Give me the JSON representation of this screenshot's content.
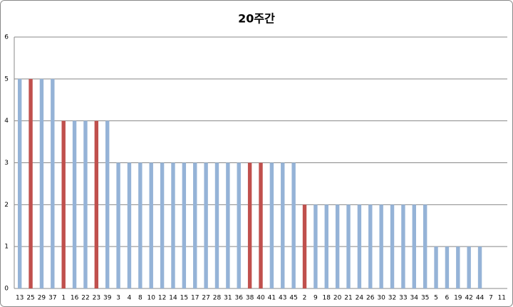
{
  "chart_data": {
    "type": "bar",
    "title": "20주간",
    "categories": [
      "13",
      "25",
      "29",
      "37",
      "1",
      "16",
      "22",
      "23",
      "39",
      "3",
      "4",
      "8",
      "10",
      "12",
      "14",
      "15",
      "17",
      "27",
      "28",
      "31",
      "36",
      "38",
      "40",
      "41",
      "43",
      "45",
      "2",
      "9",
      "18",
      "20",
      "21",
      "24",
      "26",
      "30",
      "32",
      "33",
      "34",
      "35",
      "5",
      "6",
      "19",
      "42",
      "44",
      "7",
      "11"
    ],
    "values": [
      5,
      5,
      5,
      5,
      4,
      4,
      4,
      4,
      4,
      3,
      3,
      3,
      3,
      3,
      3,
      3,
      3,
      3,
      3,
      3,
      3,
      3,
      3,
      3,
      3,
      3,
      2,
      2,
      2,
      2,
      2,
      2,
      2,
      2,
      2,
      2,
      2,
      2,
      1,
      1,
      1,
      1,
      1,
      0,
      0
    ],
    "colors": [
      "#95b3d7",
      "#c0504d",
      "#95b3d7",
      "#95b3d7",
      "#c0504d",
      "#95b3d7",
      "#95b3d7",
      "#c0504d",
      "#95b3d7",
      "#95b3d7",
      "#95b3d7",
      "#95b3d7",
      "#95b3d7",
      "#95b3d7",
      "#95b3d7",
      "#95b3d7",
      "#95b3d7",
      "#95b3d7",
      "#95b3d7",
      "#95b3d7",
      "#95b3d7",
      "#c0504d",
      "#c0504d",
      "#95b3d7",
      "#95b3d7",
      "#95b3d7",
      "#c0504d",
      "#95b3d7",
      "#95b3d7",
      "#95b3d7",
      "#95b3d7",
      "#95b3d7",
      "#95b3d7",
      "#95b3d7",
      "#95b3d7",
      "#95b3d7",
      "#95b3d7",
      "#95b3d7",
      "#95b3d7",
      "#95b3d7",
      "#95b3d7",
      "#95b3d7",
      "#95b3d7",
      "#95b3d7",
      "#95b3d7"
    ],
    "ylim": [
      0,
      6
    ],
    "yticks": [
      0,
      1,
      2,
      3,
      4,
      5,
      6
    ],
    "grid": true
  }
}
